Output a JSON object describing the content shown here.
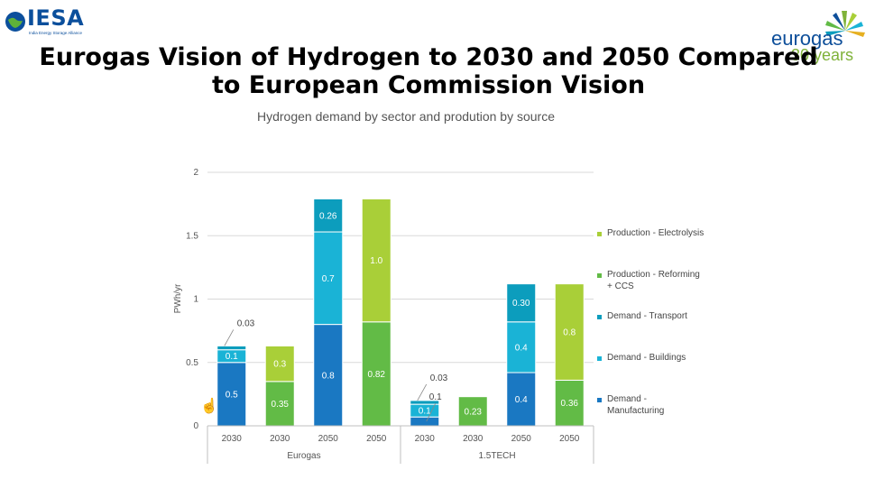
{
  "header": {
    "iesa_logo_text": "IESA",
    "iesa_tagline": "India Energy Storage Alliance",
    "eurogas_logo_text": "eurogas",
    "eurogas_years_text": "30 years",
    "title": "Eurogas Vision of Hydrogen to 2030 and 2050 Compared to European Commission Vision"
  },
  "colors": {
    "manufacturing": "#1a78c2",
    "buildings": "#1ab3d6",
    "transport": "#0c9dbd",
    "reforming_ccs": "#62bb46",
    "electrolysis": "#a9cf38"
  },
  "icons": [
    "cursor-hand-icon"
  ],
  "chart_data": {
    "type": "bar",
    "stacked": true,
    "title": "Hydrogen demand by sector and prodution by source",
    "ylabel": "PWh/yr",
    "ylim": [
      0,
      2
    ],
    "yticks": [
      "0",
      "0.5",
      "1",
      "1.5",
      "2"
    ],
    "grid": true,
    "legend_position": "right",
    "categories": [
      "2030",
      "2030",
      "2050",
      "2050",
      "2030",
      "2030",
      "2050",
      "2050"
    ],
    "groups": [
      {
        "name": "Eurogas",
        "categories": [
          0,
          1,
          2,
          3
        ]
      },
      {
        "name": "1.5TECH",
        "categories": [
          4,
          5,
          6,
          7
        ]
      }
    ],
    "series": [
      {
        "name": "Demand - Manufacturing",
        "values": [
          0.5,
          0,
          0.8,
          0,
          0.07,
          0,
          0.42,
          0
        ],
        "labels": [
          "0.5",
          "",
          "0.8",
          "",
          "",
          "",
          "0.4",
          ""
        ]
      },
      {
        "name": "Demand - Buildings",
        "values": [
          0.1,
          0,
          0.73,
          0,
          0.1,
          0,
          0.4,
          0
        ],
        "labels": [
          "0.1",
          "",
          "0.7",
          "",
          "0.1",
          "",
          "0.4",
          ""
        ]
      },
      {
        "name": "Demand - Transport",
        "values": [
          0.03,
          0,
          0.26,
          0,
          0.03,
          0,
          0.3,
          0
        ],
        "labels": [
          "0.03",
          "",
          "0.26",
          "",
          "0.03",
          "",
          "0.30",
          ""
        ]
      },
      {
        "name": "Production - Reforming + CCS",
        "values": [
          0,
          0.35,
          0,
          0.82,
          0,
          0.23,
          0,
          0.36
        ],
        "labels": [
          "",
          "0.35",
          "",
          "0.82",
          "",
          "0.23",
          "",
          "0.36"
        ]
      },
      {
        "name": "Production - Electrolysis",
        "values": [
          0,
          0.28,
          0,
          0.97,
          0,
          0,
          0,
          0.76
        ],
        "labels": [
          "",
          "0.3",
          "",
          "1.0",
          "",
          "",
          "",
          "0.8"
        ]
      }
    ],
    "annotations": [
      {
        "category": 4,
        "series": 0,
        "text": "0.1"
      }
    ]
  },
  "legend": [
    {
      "label": "Production - Electrolysis",
      "color_key": "electrolysis"
    },
    {
      "label": "Production - Reforming + CCS",
      "color_key": "reforming_ccs"
    },
    {
      "label": "Demand - Transport",
      "color_key": "transport"
    },
    {
      "label": "Demand - Buildings",
      "color_key": "buildings"
    },
    {
      "label": "Demand - Manufacturing",
      "color_key": "manufacturing"
    }
  ]
}
